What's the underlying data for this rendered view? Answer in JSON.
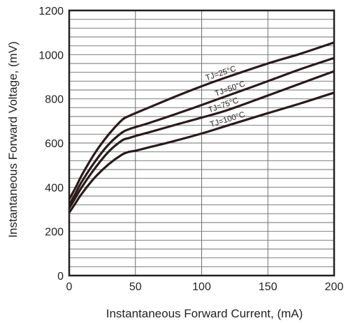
{
  "chart_data": {
    "type": "line",
    "xlabel": "Instantaneous Forward Current, (mA)",
    "ylabel": "Instantaneous Forward Voltage, (mV)",
    "xlim": [
      0,
      200
    ],
    "ylim": [
      0,
      1200
    ],
    "x_ticks": [
      "0",
      "50",
      "100",
      "150",
      "200"
    ],
    "y_ticks": [
      "0",
      "200",
      "400",
      "600",
      "800",
      "1000",
      "1200"
    ],
    "grid": true,
    "line_color": "#2a1a1a",
    "series": [
      {
        "name": "TJ=25°C",
        "x": [
          0,
          5,
          10,
          20,
          30,
          40,
          45,
          50,
          60,
          80,
          100,
          120,
          150,
          175,
          200
        ],
        "y": [
          345,
          400,
          460,
          560,
          640,
          705,
          722,
          735,
          760,
          810,
          857,
          900,
          960,
          1005,
          1055
        ]
      },
      {
        "name": "TJ=50°C",
        "x": [
          0,
          5,
          10,
          20,
          30,
          40,
          45,
          50,
          60,
          80,
          100,
          120,
          150,
          175,
          200
        ],
        "y": [
          320,
          375,
          430,
          520,
          595,
          648,
          662,
          672,
          690,
          730,
          772,
          815,
          880,
          935,
          985
        ]
      },
      {
        "name": "TJ=75°C",
        "x": [
          0,
          5,
          10,
          20,
          30,
          40,
          45,
          50,
          60,
          80,
          100,
          120,
          150,
          175,
          200
        ],
        "y": [
          305,
          355,
          405,
          490,
          562,
          612,
          622,
          632,
          648,
          682,
          715,
          750,
          815,
          870,
          925
        ]
      },
      {
        "name": "TJ=100°C",
        "x": [
          0,
          5,
          10,
          20,
          30,
          40,
          45,
          50,
          60,
          80,
          100,
          120,
          150,
          175,
          200
        ],
        "y": [
          285,
          330,
          375,
          448,
          505,
          548,
          560,
          565,
          580,
          610,
          643,
          680,
          735,
          780,
          828
        ]
      }
    ]
  }
}
